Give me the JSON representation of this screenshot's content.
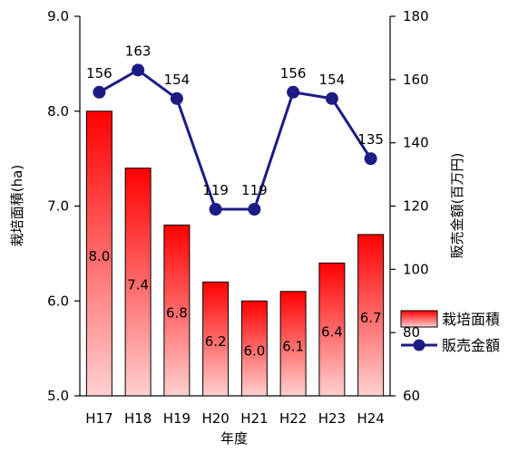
{
  "chart_data": {
    "type": "bar",
    "categories": [
      "H17",
      "H18",
      "H19",
      "H20",
      "H21",
      "H22",
      "H23",
      "H24"
    ],
    "xlabel": "年度",
    "series": [
      {
        "name": "栽培面積",
        "type": "bar",
        "axis": "left",
        "values": [
          8.0,
          7.4,
          6.8,
          6.2,
          6.0,
          6.1,
          6.4,
          6.7
        ],
        "labels": [
          "8.0",
          "7.4",
          "6.8",
          "6.2",
          "6.0",
          "6.1",
          "6.4",
          "6.7"
        ],
        "color_top": "#ff0000",
        "color_bottom": "#ffd0d0"
      },
      {
        "name": "販売金額",
        "type": "line",
        "axis": "right",
        "values": [
          156,
          163,
          154,
          119,
          119,
          156,
          154,
          135
        ],
        "labels": [
          "156",
          "163",
          "154",
          "119",
          "119",
          "156",
          "154",
          "135"
        ],
        "color": "#1c1c84"
      }
    ],
    "y_left": {
      "label": "栽培面積(ha)",
      "ylim": [
        5.0,
        9.0
      ],
      "ticks": [
        "5.0",
        "6.0",
        "7.0",
        "8.0",
        "9.0"
      ]
    },
    "y_right": {
      "label": "販売金額(百万円)",
      "ylim": [
        60,
        180
      ],
      "ticks": [
        "60",
        "80",
        "100",
        "120",
        "140",
        "160",
        "180"
      ]
    },
    "grid": false,
    "legend": "right"
  }
}
